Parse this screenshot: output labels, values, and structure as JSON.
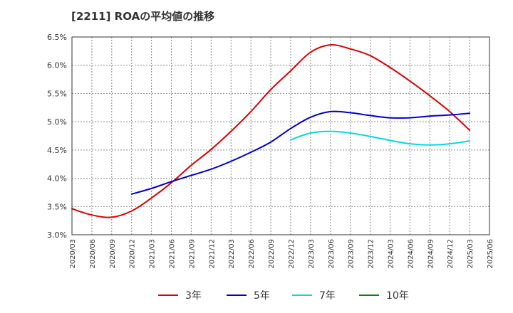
{
  "chart_data": {
    "type": "line",
    "title": "[2211]  ROAの平均値の推移",
    "xlabel": "",
    "ylabel": "",
    "ylim": [
      3.0,
      6.5
    ],
    "ytick_labels": [
      "3.0%",
      "3.5%",
      "4.0%",
      "4.5%",
      "5.0%",
      "5.5%",
      "6.0%",
      "6.5%"
    ],
    "x_categories": [
      "2020/03",
      "2020/06",
      "2020/09",
      "2020/12",
      "2021/03",
      "2021/06",
      "2021/09",
      "2021/12",
      "2022/03",
      "2022/06",
      "2022/09",
      "2022/12",
      "2023/03",
      "2023/06",
      "2023/09",
      "2023/12",
      "2024/03",
      "2024/06",
      "2024/09",
      "2024/12",
      "2025/03",
      "2025/06"
    ],
    "grid": true,
    "legend_position": "bottom",
    "series": [
      {
        "name": "3年",
        "color": "#dd0000",
        "x": [
          "2020/03",
          "2020/06",
          "2020/09",
          "2020/12",
          "2021/03",
          "2021/06",
          "2021/09",
          "2021/12",
          "2022/03",
          "2022/06",
          "2022/09",
          "2022/12",
          "2023/03",
          "2023/06",
          "2023/09",
          "2023/12",
          "2024/03",
          "2024/06",
          "2024/09",
          "2024/12",
          "2025/03"
        ],
        "values": [
          3.46,
          3.35,
          3.31,
          3.42,
          3.65,
          3.92,
          4.23,
          4.51,
          4.83,
          5.18,
          5.57,
          5.9,
          6.23,
          6.36,
          6.29,
          6.17,
          5.96,
          5.72,
          5.46,
          5.18,
          4.85
        ]
      },
      {
        "name": "5年",
        "color": "#0000cc",
        "x": [
          "2020/12",
          "2021/03",
          "2021/06",
          "2021/09",
          "2021/12",
          "2022/03",
          "2022/06",
          "2022/09",
          "2022/12",
          "2023/03",
          "2023/06",
          "2023/09",
          "2023/12",
          "2024/03",
          "2024/06",
          "2024/09",
          "2024/12",
          "2025/03"
        ],
        "values": [
          3.72,
          3.82,
          3.94,
          4.05,
          4.16,
          4.3,
          4.46,
          4.64,
          4.88,
          5.08,
          5.18,
          5.16,
          5.11,
          5.07,
          5.07,
          5.1,
          5.12,
          5.15
        ]
      },
      {
        "name": "7年",
        "color": "#00dddd",
        "x": [
          "2022/12",
          "2023/03",
          "2023/06",
          "2023/09",
          "2023/12",
          "2024/03",
          "2024/06",
          "2024/09",
          "2024/12",
          "2025/03"
        ],
        "values": [
          4.68,
          4.8,
          4.83,
          4.8,
          4.74,
          4.67,
          4.61,
          4.59,
          4.61,
          4.66
        ]
      },
      {
        "name": "10年",
        "color": "#008800",
        "x": [],
        "values": []
      }
    ]
  }
}
